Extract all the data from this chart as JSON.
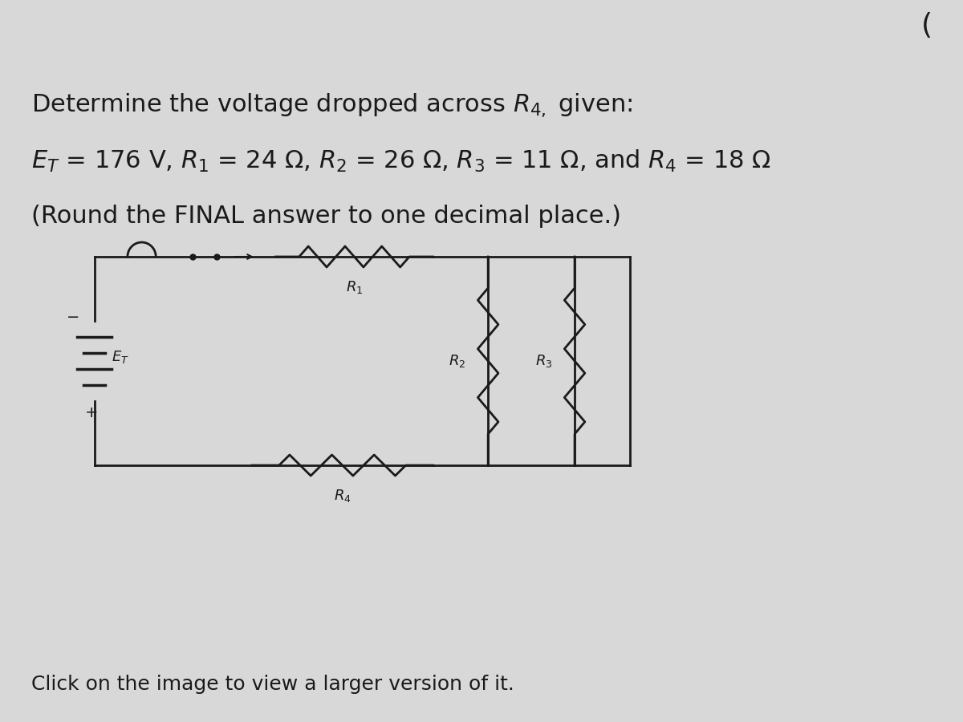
{
  "bg_color": "#d8d8d8",
  "title_line1": "Determine the voltage dropped across $R_{4,}$ given:",
  "title_line2": "$E_T$ = 176 V, $R_1$ = 24 Ω, $R_2$ = 26 Ω, $R_3$ = 11 Ω, and $R_4$ = 18 Ω",
  "title_line3": "(Round the FINAL answer to one decimal place.)",
  "footer": "Click on the image to view a larger version of it.",
  "text_color": "#1a1a1a",
  "circuit_color": "#1a1a1a",
  "corner_text": "(",
  "font_size_title": 22,
  "font_size_footer": 18
}
